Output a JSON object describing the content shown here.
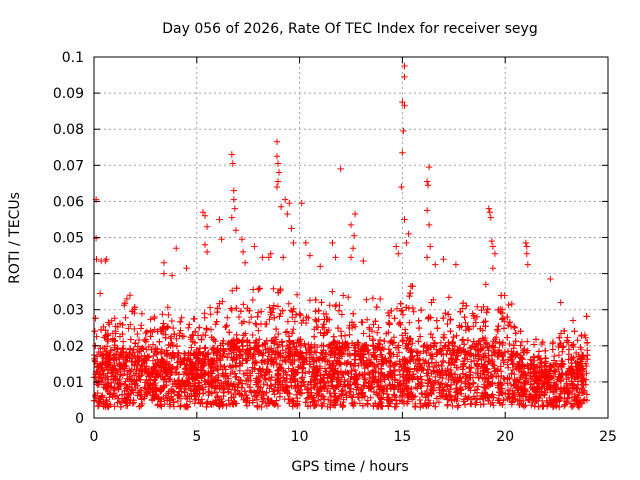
{
  "chart_data": {
    "type": "scatter",
    "title": "Day 056 of 2026, Rate Of TEC Index for receiver seyg",
    "xlabel": "GPS time / hours",
    "ylabel": "ROTI / TECUs",
    "xlim": [
      0,
      25
    ],
    "ylim": [
      0,
      0.1
    ],
    "xticks": [
      0,
      5,
      10,
      15,
      20,
      25
    ],
    "yticks": [
      0,
      0.01,
      0.02,
      0.03,
      0.04,
      0.05,
      0.06,
      0.07,
      0.08,
      0.09,
      0.1
    ],
    "xtick_labels": [
      "0",
      "5",
      "10",
      "15",
      "20",
      "25"
    ],
    "ytick_labels": [
      "0",
      "0.01",
      "0.02",
      "0.03",
      "0.04",
      "0.05",
      "0.06",
      "0.07",
      "0.08",
      "0.09",
      "0.1"
    ],
    "grid": true,
    "marker": "plus",
    "color": "#ff0000",
    "data_gap_hours": [
      20.0,
      20.1
    ],
    "outliers": [
      {
        "x": 0.1,
        "y": 0.0605
      },
      {
        "x": 0.1,
        "y": 0.0498
      },
      {
        "x": 0.12,
        "y": 0.044
      },
      {
        "x": 0.35,
        "y": 0.0435
      },
      {
        "x": 0.3,
        "y": 0.0345
      },
      {
        "x": 0.55,
        "y": 0.0435
      },
      {
        "x": 0.6,
        "y": 0.044
      },
      {
        "x": 1.6,
        "y": 0.033
      },
      {
        "x": 1.75,
        "y": 0.034
      },
      {
        "x": 3.4,
        "y": 0.043
      },
      {
        "x": 3.4,
        "y": 0.04
      },
      {
        "x": 3.8,
        "y": 0.0395
      },
      {
        "x": 4.0,
        "y": 0.047
      },
      {
        "x": 4.5,
        "y": 0.0415
      },
      {
        "x": 5.3,
        "y": 0.057
      },
      {
        "x": 5.4,
        "y": 0.056
      },
      {
        "x": 5.4,
        "y": 0.048
      },
      {
        "x": 5.5,
        "y": 0.053
      },
      {
        "x": 5.5,
        "y": 0.046
      },
      {
        "x": 6.1,
        "y": 0.055
      },
      {
        "x": 6.2,
        "y": 0.0495
      },
      {
        "x": 6.7,
        "y": 0.073
      },
      {
        "x": 6.75,
        "y": 0.0705
      },
      {
        "x": 6.8,
        "y": 0.063
      },
      {
        "x": 6.8,
        "y": 0.0605
      },
      {
        "x": 6.7,
        "y": 0.0555
      },
      {
        "x": 6.85,
        "y": 0.058
      },
      {
        "x": 6.9,
        "y": 0.052
      },
      {
        "x": 7.2,
        "y": 0.0495
      },
      {
        "x": 7.25,
        "y": 0.046
      },
      {
        "x": 7.35,
        "y": 0.043
      },
      {
        "x": 7.8,
        "y": 0.0475
      },
      {
        "x": 8.2,
        "y": 0.0445
      },
      {
        "x": 8.5,
        "y": 0.0445
      },
      {
        "x": 8.6,
        "y": 0.0455
      },
      {
        "x": 8.9,
        "y": 0.0765
      },
      {
        "x": 8.9,
        "y": 0.0725
      },
      {
        "x": 8.95,
        "y": 0.0705
      },
      {
        "x": 9.0,
        "y": 0.068
      },
      {
        "x": 8.95,
        "y": 0.0655
      },
      {
        "x": 8.9,
        "y": 0.064
      },
      {
        "x": 9.1,
        "y": 0.0585
      },
      {
        "x": 9.3,
        "y": 0.0605
      },
      {
        "x": 9.4,
        "y": 0.0565
      },
      {
        "x": 9.5,
        "y": 0.0595
      },
      {
        "x": 9.6,
        "y": 0.0525
      },
      {
        "x": 9.7,
        "y": 0.0485
      },
      {
        "x": 9.2,
        "y": 0.0445
      },
      {
        "x": 10.1,
        "y": 0.0595
      },
      {
        "x": 10.3,
        "y": 0.0485
      },
      {
        "x": 10.5,
        "y": 0.045
      },
      {
        "x": 11.0,
        "y": 0.042
      },
      {
        "x": 11.6,
        "y": 0.0485
      },
      {
        "x": 11.75,
        "y": 0.0445
      },
      {
        "x": 12.0,
        "y": 0.069
      },
      {
        "x": 12.7,
        "y": 0.0565
      },
      {
        "x": 12.5,
        "y": 0.0535
      },
      {
        "x": 12.65,
        "y": 0.0505
      },
      {
        "x": 12.6,
        "y": 0.047
      },
      {
        "x": 12.5,
        "y": 0.0445
      },
      {
        "x": 13.1,
        "y": 0.0435
      },
      {
        "x": 14.7,
        "y": 0.0475
      },
      {
        "x": 14.8,
        "y": 0.0455
      },
      {
        "x": 15.1,
        "y": 0.0975
      },
      {
        "x": 15.1,
        "y": 0.0945
      },
      {
        "x": 15.0,
        "y": 0.0875
      },
      {
        "x": 15.1,
        "y": 0.0865
      },
      {
        "x": 15.05,
        "y": 0.0795
      },
      {
        "x": 15.0,
        "y": 0.0735
      },
      {
        "x": 14.95,
        "y": 0.064
      },
      {
        "x": 15.1,
        "y": 0.055
      },
      {
        "x": 15.3,
        "y": 0.051
      },
      {
        "x": 15.2,
        "y": 0.0485
      },
      {
        "x": 16.3,
        "y": 0.0695
      },
      {
        "x": 16.2,
        "y": 0.0655
      },
      {
        "x": 16.25,
        "y": 0.0645
      },
      {
        "x": 16.2,
        "y": 0.0575
      },
      {
        "x": 16.3,
        "y": 0.0535
      },
      {
        "x": 16.35,
        "y": 0.0475
      },
      {
        "x": 16.2,
        "y": 0.0445
      },
      {
        "x": 16.6,
        "y": 0.0425
      },
      {
        "x": 17.0,
        "y": 0.044
      },
      {
        "x": 17.6,
        "y": 0.0425
      },
      {
        "x": 19.2,
        "y": 0.058
      },
      {
        "x": 19.25,
        "y": 0.057
      },
      {
        "x": 19.3,
        "y": 0.0555
      },
      {
        "x": 19.35,
        "y": 0.049
      },
      {
        "x": 19.4,
        "y": 0.0475
      },
      {
        "x": 19.5,
        "y": 0.0455
      },
      {
        "x": 19.4,
        "y": 0.0415
      },
      {
        "x": 21.0,
        "y": 0.0485
      },
      {
        "x": 21.05,
        "y": 0.0475
      },
      {
        "x": 21.05,
        "y": 0.0455
      },
      {
        "x": 21.1,
        "y": 0.0425
      },
      {
        "x": 22.2,
        "y": 0.0385
      },
      {
        "x": 22.7,
        "y": 0.032
      },
      {
        "x": 23.3,
        "y": 0.027
      }
    ],
    "envelope": [
      {
        "x": 0,
        "y": 0.024
      },
      {
        "x": 1,
        "y": 0.027
      },
      {
        "x": 2,
        "y": 0.026
      },
      {
        "x": 3,
        "y": 0.025
      },
      {
        "x": 4,
        "y": 0.026
      },
      {
        "x": 5,
        "y": 0.024
      },
      {
        "x": 6,
        "y": 0.027
      },
      {
        "x": 7,
        "y": 0.031
      },
      {
        "x": 8,
        "y": 0.03
      },
      {
        "x": 9,
        "y": 0.031
      },
      {
        "x": 10,
        "y": 0.03
      },
      {
        "x": 11,
        "y": 0.028
      },
      {
        "x": 12,
        "y": 0.03
      },
      {
        "x": 13,
        "y": 0.028
      },
      {
        "x": 14,
        "y": 0.028
      },
      {
        "x": 15,
        "y": 0.032
      },
      {
        "x": 16,
        "y": 0.029
      },
      {
        "x": 17,
        "y": 0.029
      },
      {
        "x": 18,
        "y": 0.03
      },
      {
        "x": 19,
        "y": 0.031
      },
      {
        "x": 20,
        "y": 0.03
      },
      {
        "x": 21,
        "y": 0.02
      },
      {
        "x": 22,
        "y": 0.018
      },
      {
        "x": 23,
        "y": 0.022
      },
      {
        "x": 24,
        "y": 0.024
      }
    ]
  }
}
